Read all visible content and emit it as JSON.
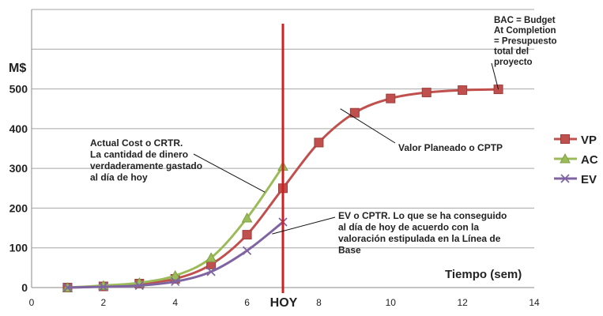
{
  "chart_data": {
    "type": "line",
    "title": "",
    "ylabel": "M$",
    "xlabel": "Tiempo (sem)",
    "xlim": [
      0,
      14
    ],
    "ylim": [
      0,
      700
    ],
    "x_ticks": [
      "0",
      "2",
      "4",
      "6",
      "8",
      "10",
      "12",
      "14"
    ],
    "y_ticks": [
      "0",
      "100",
      "200",
      "300",
      "400",
      "500"
    ],
    "grid": true,
    "legend_position": "right",
    "series": [
      {
        "name": "VP",
        "color": "#C0504D",
        "marker": "square",
        "x": [
          1,
          2,
          3,
          4,
          5,
          6,
          7,
          8,
          9,
          10,
          11,
          12,
          13
        ],
        "y": [
          0,
          3,
          10,
          22,
          58,
          133,
          250,
          365,
          440,
          476,
          491,
          497,
          499
        ]
      },
      {
        "name": "AC",
        "color": "#9BBB59",
        "marker": "triangle",
        "x": [
          1,
          2,
          3,
          4,
          5,
          6,
          7
        ],
        "y": [
          0,
          5,
          12,
          30,
          75,
          175,
          305
        ]
      },
      {
        "name": "EV",
        "color": "#8064A2",
        "marker": "x",
        "x": [
          1,
          2,
          3,
          4,
          5,
          6,
          7
        ],
        "y": [
          0,
          2,
          5,
          15,
          40,
          93,
          165
        ]
      }
    ],
    "today_line": {
      "x": 7,
      "label": "HOY",
      "color": "#CC2222"
    },
    "annotations": [
      {
        "id": "bac",
        "lines": [
          "BAC = Budget",
          "At Completion",
          "= Presupuesto",
          "total del",
          "proyecto"
        ],
        "point": {
          "x": 13,
          "y": 499
        }
      },
      {
        "id": "ac",
        "lines": [
          "Actual Cost o CRTR.",
          "La cantidad de dinero",
          "verdaderamente gastado",
          "al día de hoy"
        ],
        "point": {
          "x": 6.5,
          "y": 240
        }
      },
      {
        "id": "vp",
        "lines": [
          "Valor Planeado o CPTP"
        ],
        "point": {
          "x": 8.6,
          "y": 450
        }
      },
      {
        "id": "ev",
        "lines": [
          "EV o CPTR. Lo que se ha conseguido",
          "al día de hoy de acuerdo con la",
          "valoración estipulada en la Línea de",
          "Base"
        ],
        "point": {
          "x": 6.7,
          "y": 135
        }
      }
    ]
  }
}
